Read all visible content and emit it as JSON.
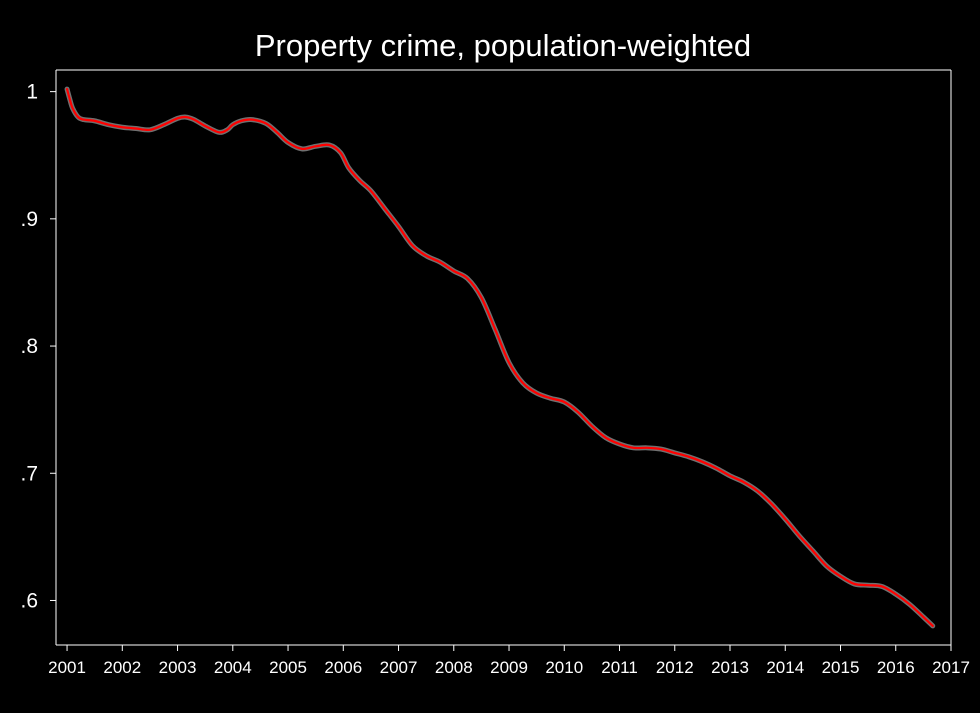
{
  "chart_data": {
    "type": "line",
    "title": "Property crime, population-weighted",
    "xlabel": "",
    "ylabel": "",
    "xlim": [
      2000.8,
      2017.0
    ],
    "ylim": [
      0.565,
      1.017
    ],
    "x_ticks": [
      2001,
      2002,
      2003,
      2004,
      2005,
      2006,
      2007,
      2008,
      2009,
      2010,
      2011,
      2012,
      2013,
      2014,
      2015,
      2016,
      2017
    ],
    "x_tick_labels": [
      "2001",
      "2002",
      "2003",
      "2004",
      "2005",
      "2006",
      "2007",
      "2008",
      "2009",
      "2010",
      "2011",
      "2012",
      "2013",
      "2014",
      "2015",
      "2016",
      "2017"
    ],
    "y_ticks": [
      0.6,
      0.7,
      0.8,
      0.9,
      1.0
    ],
    "y_tick_labels": [
      ".6",
      ".7",
      ".8",
      ".9",
      "1"
    ],
    "grid": false,
    "background": "#000000",
    "axis_color": "#ffffff",
    "series": [
      {
        "color": "#ff0000",
        "band_color": "#cccccc",
        "x": [
          2001.0,
          2001.05,
          2001.1,
          2001.2,
          2001.3,
          2001.5,
          2001.75,
          2002.0,
          2002.25,
          2002.5,
          2002.75,
          2003.0,
          2003.15,
          2003.3,
          2003.5,
          2003.75,
          2003.9,
          2004.0,
          2004.15,
          2004.35,
          2004.6,
          2004.8,
          2005.0,
          2005.25,
          2005.5,
          2005.75,
          2005.95,
          2006.1,
          2006.3,
          2006.5,
          2006.75,
          2007.0,
          2007.25,
          2007.5,
          2007.75,
          2008.0,
          2008.25,
          2008.5,
          2008.75,
          2009.0,
          2009.25,
          2009.5,
          2009.75,
          2010.0,
          2010.25,
          2010.5,
          2010.75,
          2011.0,
          2011.25,
          2011.5,
          2011.75,
          2012.0,
          2012.25,
          2012.5,
          2012.75,
          2013.0,
          2013.25,
          2013.5,
          2013.75,
          2014.0,
          2014.25,
          2014.5,
          2014.75,
          2015.0,
          2015.25,
          2015.5,
          2015.75,
          2016.0,
          2016.25,
          2016.5,
          2016.67
        ],
        "y": [
          1.002,
          0.994,
          0.987,
          0.98,
          0.978,
          0.977,
          0.974,
          0.972,
          0.971,
          0.97,
          0.974,
          0.979,
          0.98,
          0.978,
          0.973,
          0.968,
          0.97,
          0.974,
          0.977,
          0.978,
          0.975,
          0.968,
          0.96,
          0.955,
          0.957,
          0.958,
          0.952,
          0.94,
          0.93,
          0.922,
          0.908,
          0.894,
          0.879,
          0.871,
          0.866,
          0.859,
          0.853,
          0.838,
          0.813,
          0.787,
          0.771,
          0.763,
          0.759,
          0.756,
          0.748,
          0.737,
          0.728,
          0.723,
          0.72,
          0.72,
          0.719,
          0.716,
          0.713,
          0.709,
          0.704,
          0.698,
          0.693,
          0.686,
          0.676,
          0.664,
          0.651,
          0.639,
          0.627,
          0.619,
          0.613,
          0.612,
          0.611,
          0.605,
          0.597,
          0.587,
          0.58
        ]
      }
    ]
  }
}
